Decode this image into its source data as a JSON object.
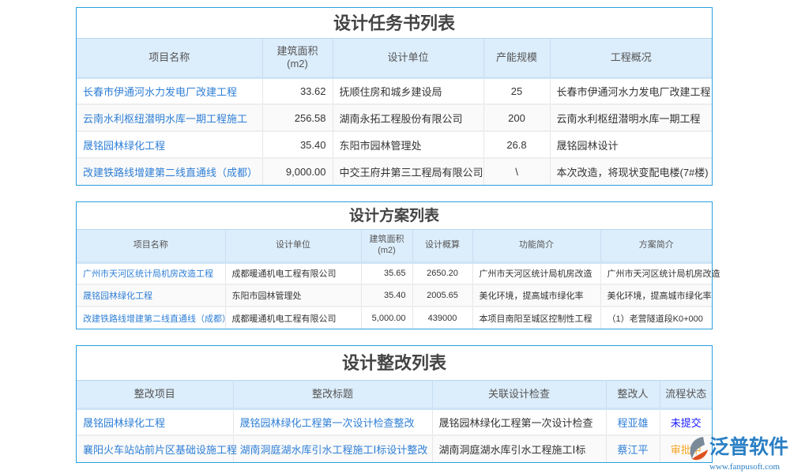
{
  "task_list": {
    "title": "设计任务书列表",
    "headers": [
      "项目名称",
      "建筑面积\n(m2)",
      "设计单位",
      "产能规模",
      "工程概况"
    ],
    "rows": [
      [
        "长春市伊通河水力发电厂改建工程",
        "33.62",
        "抚顺住房和城乡建设局",
        "25",
        "长春市伊通河水力发电厂改建工程"
      ],
      [
        "云南水利枢纽潜明水库一期工程施工",
        "256.58",
        "湖南永拓工程股份有限公司",
        "200",
        "云南水利枢纽潜明水库一期工程"
      ],
      [
        "晟铭园林绿化工程",
        "35.40",
        "东阳市园林管理处",
        "26.8",
        "晟铭园林设计"
      ],
      [
        "改建铁路线增建第二线直通线（成都）",
        "9,000.00",
        "中交王府井第三工程局有限公司",
        "\\",
        "本次改造，将现状变配电楼(7#楼)"
      ]
    ]
  },
  "scheme_list": {
    "title": "设计方案列表",
    "headers": [
      "项目名称",
      "设计单位",
      "建筑面积\n(m2)",
      "设计概算",
      "功能简介",
      "方案简介"
    ],
    "rows": [
      [
        "广州市天河区统计局机房改造工程",
        "成都暖通机电工程有限公司",
        "35.65",
        "2650.20",
        "广州市天河区统计局机房改造",
        "广州市天河区统计局机房改造"
      ],
      [
        "晟铭园林绿化工程",
        "东阳市园林管理处",
        "35.40",
        "2005.65",
        "美化环境，提高城市绿化率",
        "美化环境，提高城市绿化率"
      ],
      [
        "改建铁路线增建第二线直通线（成都）",
        "成都暖通机电工程有限公司",
        "5,000.00",
        "439000",
        "本项目南阳至城区控制性工程",
        "（1）老营隧道段K0+000"
      ]
    ]
  },
  "rectify_list": {
    "title": "设计整改列表",
    "headers": [
      "整改项目",
      "整改标题",
      "关联设计检查",
      "整改人",
      "流程状态"
    ],
    "rows": [
      [
        "晟铭园林绿化工程",
        "晟铭园林绿化工程第一次设计检查整改",
        "晟铭园林绿化工程第一次设计检查",
        "程亚雄",
        "未提交"
      ],
      [
        "襄阳火车站站前片区基础设施工程",
        "湖南洞庭湖水库引水工程施工Ⅰ标设计整改",
        "湖南洞庭湖水库引水工程施工Ⅰ标",
        "蔡江平",
        "审批中"
      ]
    ]
  },
  "status_colors": {
    "未提交": "#1a1aff",
    "审批中": "#f5a623"
  },
  "logo": {
    "name": "泛普软件",
    "url": "www.fanpusoft.com"
  }
}
